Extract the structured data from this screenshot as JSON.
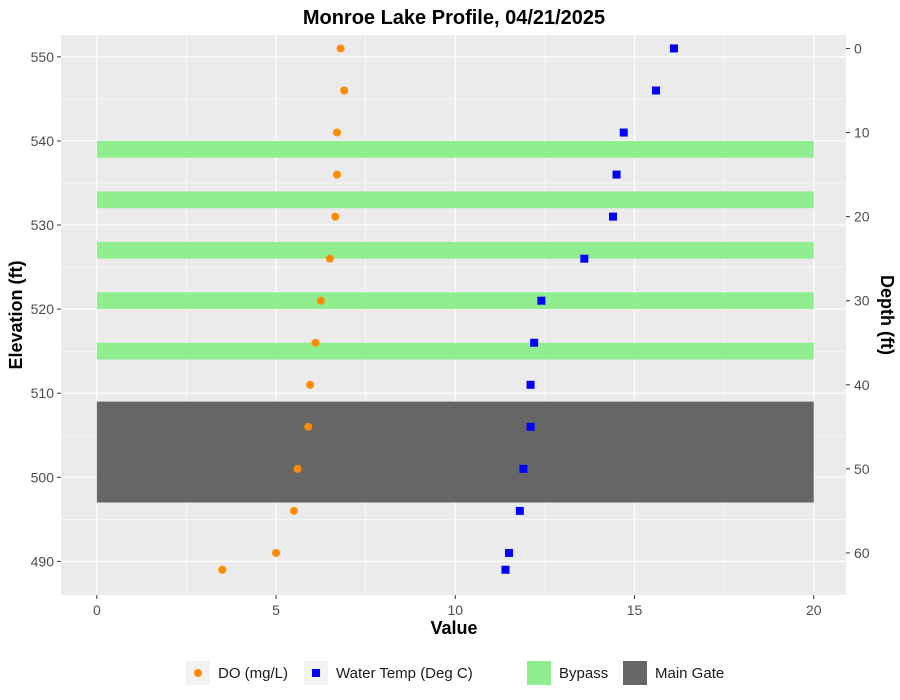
{
  "chart_data": {
    "type": "scatter",
    "title": "Monroe Lake Profile,  04/21/2025",
    "xlabel": "Value",
    "ylabel": "Elevation (ft)",
    "y2label": "Depth (ft)",
    "xlim": [
      -1,
      20.9
    ],
    "ylim": [
      486,
      552.6
    ],
    "y2lim": [
      -1.6,
      65
    ],
    "x_ticks": [
      0,
      5,
      10,
      15,
      20
    ],
    "y_ticks": [
      490,
      500,
      510,
      520,
      530,
      540,
      550
    ],
    "y2_ticks": [
      0,
      10,
      20,
      30,
      40,
      50,
      60
    ],
    "series": [
      {
        "name": "DO (mg/L)",
        "color": "#ff8c00",
        "shape": "circle",
        "points": [
          {
            "x": 6.8,
            "y": 551
          },
          {
            "x": 6.9,
            "y": 546
          },
          {
            "x": 6.7,
            "y": 541
          },
          {
            "x": 6.7,
            "y": 536
          },
          {
            "x": 6.65,
            "y": 531
          },
          {
            "x": 6.5,
            "y": 526
          },
          {
            "x": 6.25,
            "y": 521
          },
          {
            "x": 6.1,
            "y": 516
          },
          {
            "x": 5.95,
            "y": 511
          },
          {
            "x": 5.9,
            "y": 506
          },
          {
            "x": 5.6,
            "y": 501
          },
          {
            "x": 5.5,
            "y": 496
          },
          {
            "x": 5.0,
            "y": 491
          },
          {
            "x": 3.5,
            "y": 489
          }
        ]
      },
      {
        "name": "Water Temp (Deg C)",
        "color": "#0000ff",
        "shape": "square",
        "points": [
          {
            "x": 16.1,
            "y": 551
          },
          {
            "x": 15.6,
            "y": 546
          },
          {
            "x": 14.7,
            "y": 541
          },
          {
            "x": 14.5,
            "y": 536
          },
          {
            "x": 14.4,
            "y": 531
          },
          {
            "x": 13.6,
            "y": 526
          },
          {
            "x": 12.4,
            "y": 521
          },
          {
            "x": 12.2,
            "y": 516
          },
          {
            "x": 12.1,
            "y": 511
          },
          {
            "x": 12.1,
            "y": 506
          },
          {
            "x": 11.9,
            "y": 501
          },
          {
            "x": 11.8,
            "y": 496
          },
          {
            "x": 11.5,
            "y": 491
          },
          {
            "x": 11.4,
            "y": 489
          }
        ]
      }
    ],
    "bands": [
      {
        "name": "Bypass",
        "color": "#90ee90",
        "x0": 0,
        "x1": 20,
        "ranges": [
          [
            538,
            540
          ],
          [
            532,
            534
          ],
          [
            526,
            528
          ],
          [
            520,
            522
          ],
          [
            514,
            516
          ]
        ]
      },
      {
        "name": "Main Gate",
        "color": "#666666",
        "x0": 0,
        "x1": 20,
        "ranges": [
          [
            497,
            509
          ]
        ]
      }
    ],
    "legend_position": "bottom",
    "grid": true
  }
}
